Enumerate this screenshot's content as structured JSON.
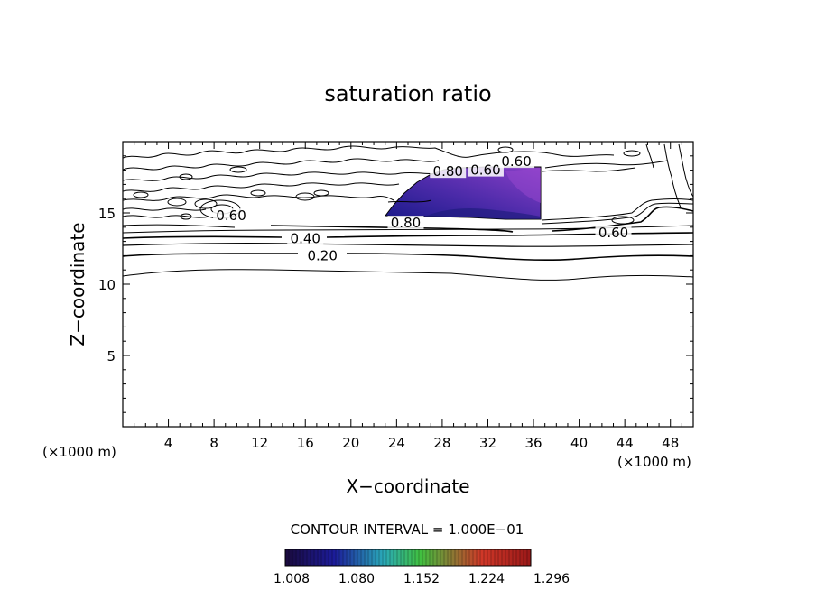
{
  "chart_data": {
    "type": "contour",
    "title": "saturation ratio",
    "xlabel": "X−coordinate",
    "ylabel": "Z−coordinate",
    "x_unit": "(×1000 m)",
    "y_unit": "(×1000 m)",
    "xlim": [
      0,
      50
    ],
    "ylim": [
      0,
      20
    ],
    "x_ticks": [
      4,
      8,
      12,
      16,
      20,
      24,
      28,
      32,
      36,
      40,
      44,
      48
    ],
    "y_ticks": [
      5,
      10,
      15
    ],
    "contour_labels": [
      {
        "text": "0.20",
        "x": 17.5,
        "y": 12.0
      },
      {
        "text": "0.40",
        "x": 16.0,
        "y": 13.2
      },
      {
        "text": "0.60",
        "x": 43.0,
        "y": 13.6
      },
      {
        "text": "0.60",
        "x": 9.5,
        "y": 14.8
      },
      {
        "text": "0.80",
        "x": 24.8,
        "y": 14.3
      },
      {
        "text": "0.80",
        "x": 28.5,
        "y": 17.9
      },
      {
        "text": "0.60",
        "x": 31.8,
        "y": 18.0
      },
      {
        "text": "0.60",
        "x": 34.5,
        "y": 18.6
      }
    ],
    "contour_interval_text": "CONTOUR INTERVAL = 1.000E−01",
    "shaded_region": {
      "min": 1.008,
      "max": 1.296,
      "x_range": [
        22.8,
        36.5
      ],
      "z_range": [
        14.5,
        18.2
      ]
    },
    "colorbar": {
      "tick_labels": [
        "1.008",
        "1.080",
        "1.152",
        "1.224",
        "1.296"
      ],
      "colors": [
        "#1a0a3c",
        "#1c1c9a",
        "#2aa9b8",
        "#40c040",
        "#d03828",
        "#9a1818"
      ]
    }
  }
}
